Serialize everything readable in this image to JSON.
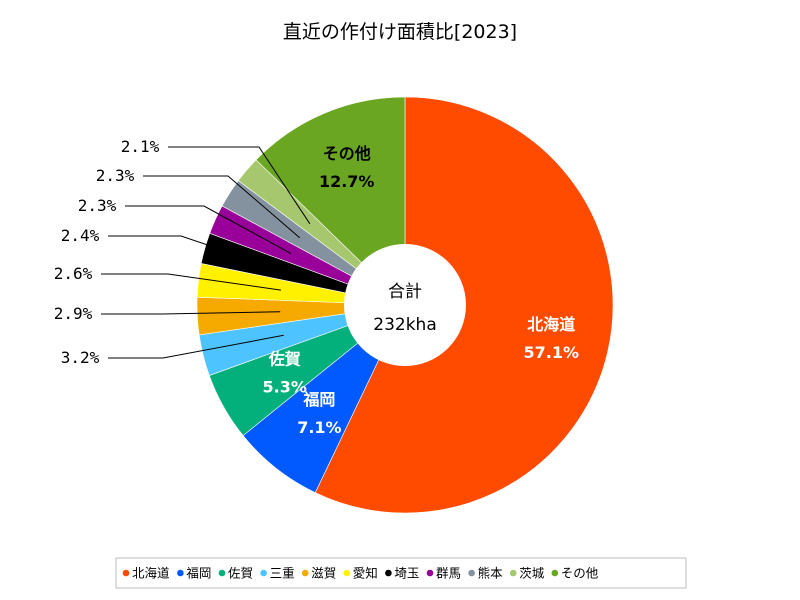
{
  "chart_data": {
    "type": "pie",
    "title": "直近の作付け面積比[2023]",
    "center_label": "合計",
    "center_value": "232kha",
    "legend_position": "bottom",
    "slices": [
      {
        "name": "北海道",
        "value": 57.1,
        "label": "57.1%",
        "color": "#ff4b00"
      },
      {
        "name": "福岡",
        "value": 7.1,
        "label": "7.1%",
        "color": "#005aff"
      },
      {
        "name": "佐賀",
        "value": 5.3,
        "label": "5.3%",
        "color": "#03af7a"
      },
      {
        "name": "三重",
        "value": 3.2,
        "label": "3.2%",
        "color": "#4dc4ff"
      },
      {
        "name": "滋賀",
        "value": 2.9,
        "label": "2.9%",
        "color": "#f6aa00"
      },
      {
        "name": "愛知",
        "value": 2.6,
        "label": "2.6%",
        "color": "#fff100"
      },
      {
        "name": "埼玉",
        "value": 2.4,
        "label": "2.4%",
        "color": "#000000"
      },
      {
        "name": "群馬",
        "value": 2.3,
        "label": "2.3%",
        "color": "#990099"
      },
      {
        "name": "熊本",
        "value": 2.3,
        "label": "2.3%",
        "color": "#84919e"
      },
      {
        "name": "茨城",
        "value": 2.1,
        "label": "2.1%",
        "color": "#a6c76d"
      },
      {
        "name": "その他",
        "value": 12.7,
        "label": "12.7%",
        "color": "#6aa622"
      }
    ]
  }
}
